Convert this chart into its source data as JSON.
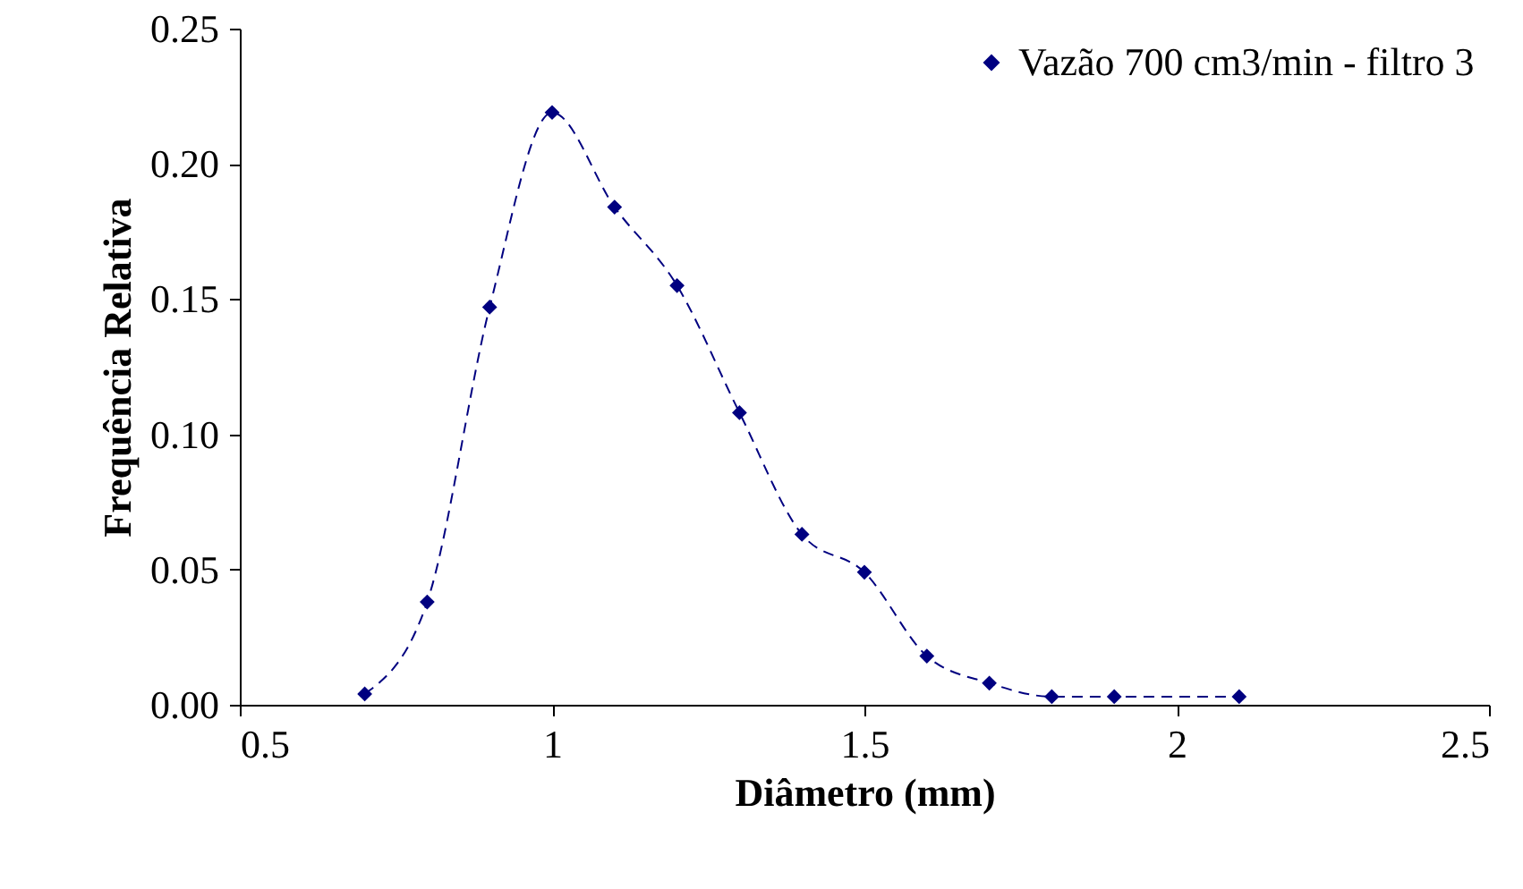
{
  "chart_data": {
    "type": "line",
    "xlabel": "Diâmetro (mm)",
    "ylabel": "Frequência Relativa",
    "x": [
      0.7,
      0.8,
      0.9,
      1.0,
      1.1,
      1.2,
      1.3,
      1.4,
      1.5,
      1.6,
      1.7,
      1.8,
      1.9,
      2.1
    ],
    "series": [
      {
        "name": "Vazão 700 cm3/min - filtro 3",
        "color": "#000080",
        "values": [
          0.004,
          0.038,
          0.147,
          0.219,
          0.184,
          0.155,
          0.108,
          0.063,
          0.049,
          0.018,
          0.008,
          0.003,
          0.003,
          0.003
        ]
      }
    ],
    "xlim": [
      0.5,
      2.5
    ],
    "xticks": [
      0.5,
      1,
      1.5,
      2,
      2.5
    ],
    "ylim": [
      0,
      0.25
    ],
    "yticks": [
      {
        "value": 0,
        "label": "0.00"
      },
      {
        "value": 0.05,
        "label": "0.05"
      },
      {
        "value": 0.1,
        "label": "0.10"
      },
      {
        "value": 0.15,
        "label": "0.15"
      },
      {
        "value": 0.2,
        "label": "0.20"
      },
      {
        "value": 0.25,
        "label": "0.25"
      }
    ],
    "marker": "diamond",
    "line_style": "dashed",
    "legend": "top right",
    "grid": false
  }
}
